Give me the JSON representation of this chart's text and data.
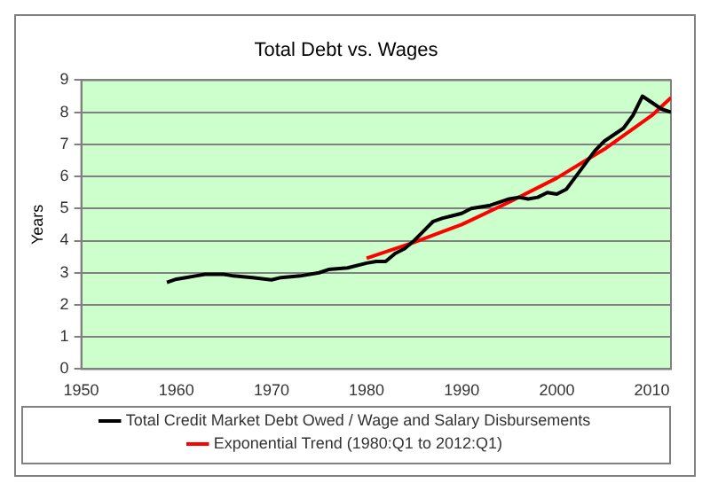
{
  "chart_data": {
    "type": "line",
    "title": "Total Debt vs. Wages",
    "ylabel": "Years",
    "xlim": [
      1950,
      2012
    ],
    "xticks": [
      1950,
      1960,
      1970,
      1980,
      1990,
      2000,
      2010
    ],
    "ylim": [
      0,
      9
    ],
    "yticks": [
      0,
      1,
      2,
      3,
      4,
      5,
      6,
      7,
      8,
      9
    ],
    "grid": "y",
    "legend": "bottom",
    "marker": "none",
    "line_style": "solid",
    "series": [
      {
        "name": "Total Credit Market Debt Owed / Wage and Salary Disbursements",
        "color": "#000000",
        "x": [
          1959,
          1960,
          1961,
          1962,
          1963,
          1965,
          1966,
          1968,
          1970,
          1971,
          1973,
          1975,
          1976,
          1978,
          1980,
          1981,
          1982,
          1983,
          1984,
          1985,
          1986,
          1987,
          1988,
          1990,
          1991,
          1993,
          1995,
          1996,
          1997,
          1998,
          1999,
          2000,
          2001,
          2002,
          2003,
          2004,
          2005,
          2006,
          2007,
          2008,
          2009,
          2010,
          2011,
          2012
        ],
        "values": [
          2.7,
          2.8,
          2.85,
          2.9,
          2.95,
          2.95,
          2.9,
          2.85,
          2.78,
          2.85,
          2.9,
          3.0,
          3.1,
          3.15,
          3.3,
          3.35,
          3.35,
          3.6,
          3.75,
          4.0,
          4.3,
          4.6,
          4.7,
          4.85,
          5.0,
          5.1,
          5.3,
          5.35,
          5.3,
          5.35,
          5.5,
          5.45,
          5.6,
          6.0,
          6.4,
          6.8,
          7.1,
          7.3,
          7.5,
          7.9,
          8.5,
          8.3,
          8.1,
          8.0
        ]
      },
      {
        "name": "Exponential Trend (1980:Q1 to 2012:Q1)",
        "color": "#ff0000",
        "x": [
          1980,
          1985,
          1990,
          1995,
          2000,
          2005,
          2010,
          2012
        ],
        "values": [
          3.45,
          3.95,
          4.5,
          5.2,
          5.95,
          6.85,
          7.9,
          8.45
        ]
      }
    ]
  }
}
